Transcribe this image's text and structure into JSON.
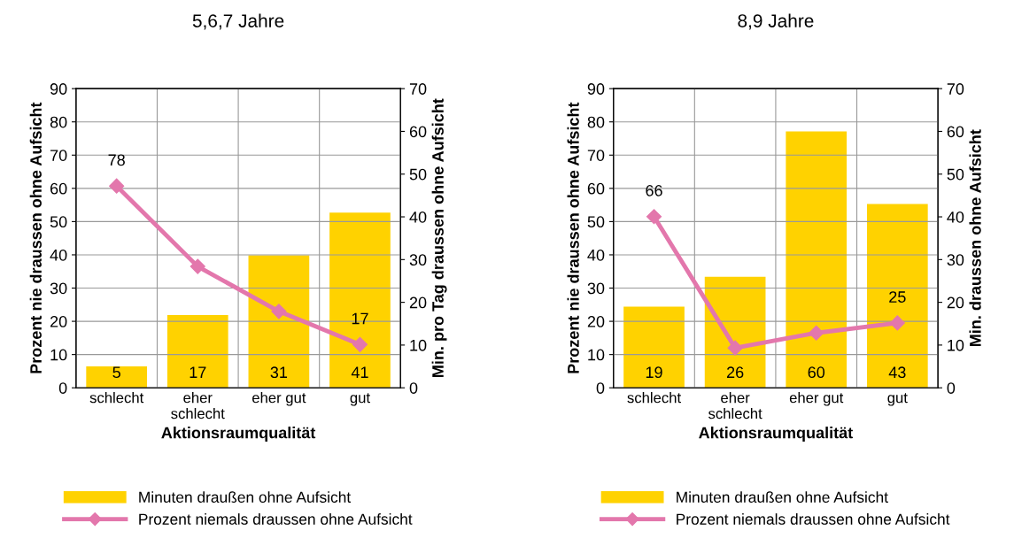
{
  "chart_data": [
    {
      "type": "bar",
      "title": "5,6,7 Jahre",
      "xlabel": "Aktionsraumqualität",
      "ylabel": "Prozent nie draussen ohne Aufsicht",
      "y2label": "Min. pro Tag draussen ohne Aufsicht",
      "categories": [
        "schlecht",
        "eher\nschlecht",
        "eher gut",
        "gut"
      ],
      "series": [
        {
          "name": "Minuten draußen ohne Aufsicht",
          "axis": "y2",
          "color": "#ffd200",
          "values": [
            5,
            17,
            31,
            41
          ],
          "value_labels": [
            "5",
            "17",
            "31",
            "41"
          ]
        },
        {
          "name": "Prozent niemals draussen ohne Aufsicht",
          "type": "line",
          "axis": "y",
          "color": "#e377ac",
          "values": [
            60.7,
            36.5,
            23,
            13
          ]
        }
      ],
      "annotations": [
        {
          "text": "78",
          "x": "schlecht",
          "y": 60.7
        },
        {
          "text": "17",
          "x": "gut",
          "y": 13
        }
      ],
      "ylim": [
        0,
        90
      ],
      "yticks": [
        0,
        10,
        20,
        30,
        40,
        50,
        60,
        70,
        80,
        90
      ],
      "y2lim": [
        0,
        70
      ],
      "y2ticks": [
        0,
        10,
        20,
        30,
        40,
        50,
        60,
        70
      ],
      "grid": true,
      "legend": "bottom",
      "marker": "diamond",
      "line_style": "solid"
    },
    {
      "type": "bar",
      "title": "8,9 Jahre",
      "xlabel": "Aktionsraumqualität",
      "ylabel": "Prozent nie draussen ohne Aufsicht",
      "y2label": "Min. draussen ohne Aufsicht",
      "categories": [
        "schlecht",
        "eher\nschlecht",
        "eher gut",
        "gut"
      ],
      "series": [
        {
          "name": "Minuten draußen ohne Aufsicht",
          "axis": "y2",
          "color": "#ffd200",
          "values": [
            19,
            26,
            60,
            43
          ],
          "value_labels": [
            "19",
            "26",
            "60",
            "43"
          ]
        },
        {
          "name": "Prozent niemals draussen ohne Aufsicht",
          "type": "line",
          "axis": "y",
          "color": "#e377ac",
          "values": [
            51.5,
            12,
            16.5,
            19.5
          ]
        }
      ],
      "annotations": [
        {
          "text": "66",
          "x": "schlecht",
          "y": 51.5
        },
        {
          "text": "25",
          "x": "gut",
          "y": 19.5
        }
      ],
      "ylim": [
        0,
        90
      ],
      "yticks": [
        0,
        10,
        20,
        30,
        40,
        50,
        60,
        70,
        80,
        90
      ],
      "y2lim": [
        0,
        70
      ],
      "y2ticks": [
        0,
        10,
        20,
        30,
        40,
        50,
        60,
        70
      ],
      "grid": true,
      "legend": "bottom",
      "marker": "diamond",
      "line_style": "solid"
    }
  ]
}
